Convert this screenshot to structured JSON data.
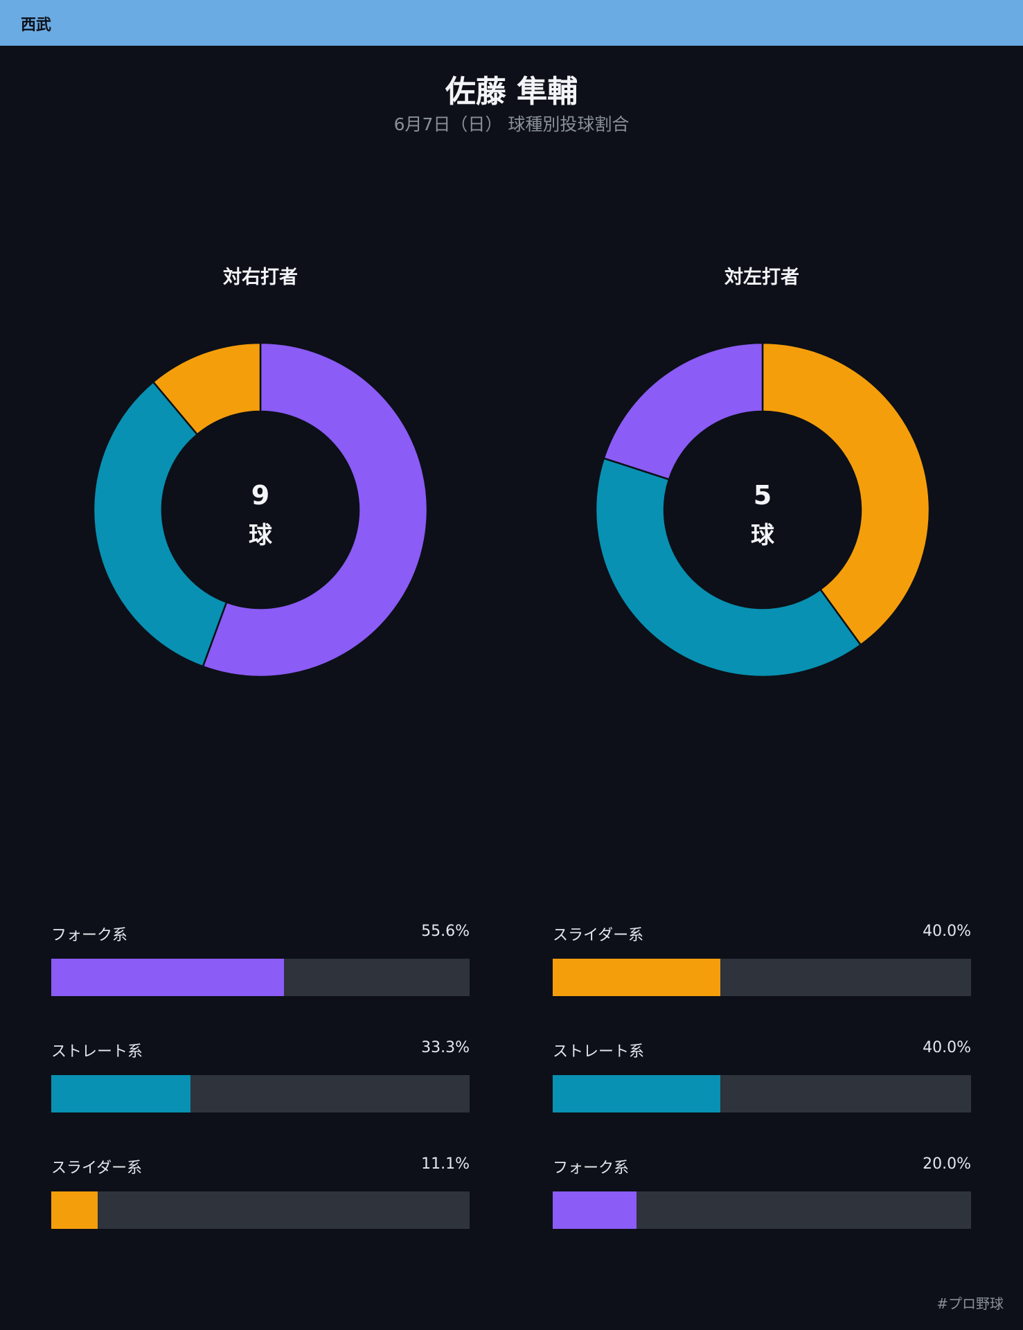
{
  "header": {
    "team": "西武"
  },
  "title": "佐藤 隼輔",
  "subtitle": "6月7日（日） 球種別投球割合",
  "footer": {
    "hashtag": "#プロ野球"
  },
  "colors": {
    "fork": "#8b5cf6",
    "straight": "#0891b2",
    "slider": "#f59e0b",
    "track": "#2e333c",
    "background": "#0d1018"
  },
  "chart_data": [
    {
      "type": "pie",
      "title": "対右打者",
      "center_count": "9",
      "center_unit": "球",
      "slices": [
        {
          "label": "フォーク系",
          "value": 55.6,
          "display": "55.6%",
          "color": "#8b5cf6"
        },
        {
          "label": "ストレート系",
          "value": 33.3,
          "display": "33.3%",
          "color": "#0891b2"
        },
        {
          "label": "スライダー系",
          "value": 11.1,
          "display": "11.1%",
          "color": "#f59e0b"
        }
      ]
    },
    {
      "type": "pie",
      "title": "対左打者",
      "center_count": "5",
      "center_unit": "球",
      "slices": [
        {
          "label": "スライダー系",
          "value": 40.0,
          "display": "40.0%",
          "color": "#f59e0b"
        },
        {
          "label": "ストレート系",
          "value": 40.0,
          "display": "40.0%",
          "color": "#0891b2"
        },
        {
          "label": "フォーク系",
          "value": 20.0,
          "display": "20.0%",
          "color": "#8b5cf6"
        }
      ]
    }
  ]
}
